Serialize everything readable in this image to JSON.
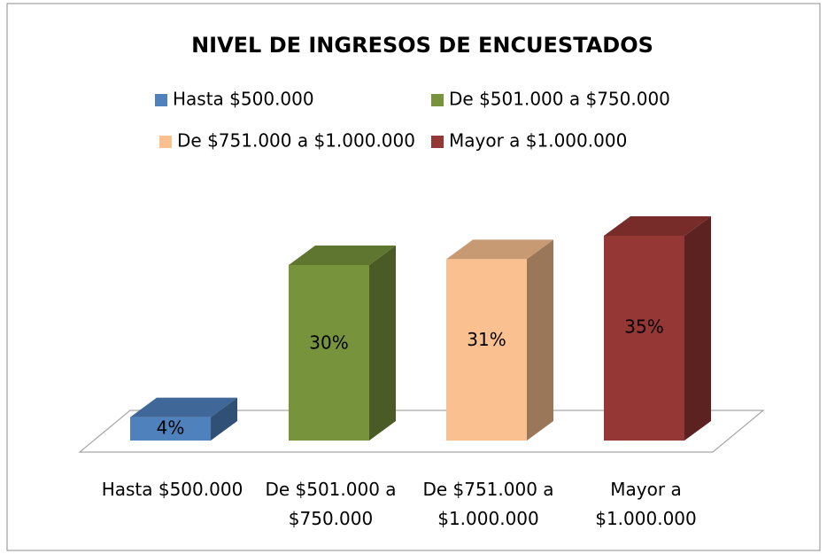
{
  "chart_data": {
    "type": "bar3d",
    "title": "NIVEL DE INGRESOS DE ENCUESTADOS",
    "categories": [
      "Hasta $500.000",
      "De $501.000 a $750.000",
      "De $751.000 a $1.000.000",
      "Mayor a $1.000.000"
    ],
    "values": [
      4,
      30,
      31,
      35
    ],
    "value_labels": [
      "4%",
      "30%",
      "31%",
      "35%"
    ],
    "colors": [
      "#4f81bd",
      "#77933c",
      "#fac090",
      "#953735"
    ],
    "legend": "top"
  }
}
